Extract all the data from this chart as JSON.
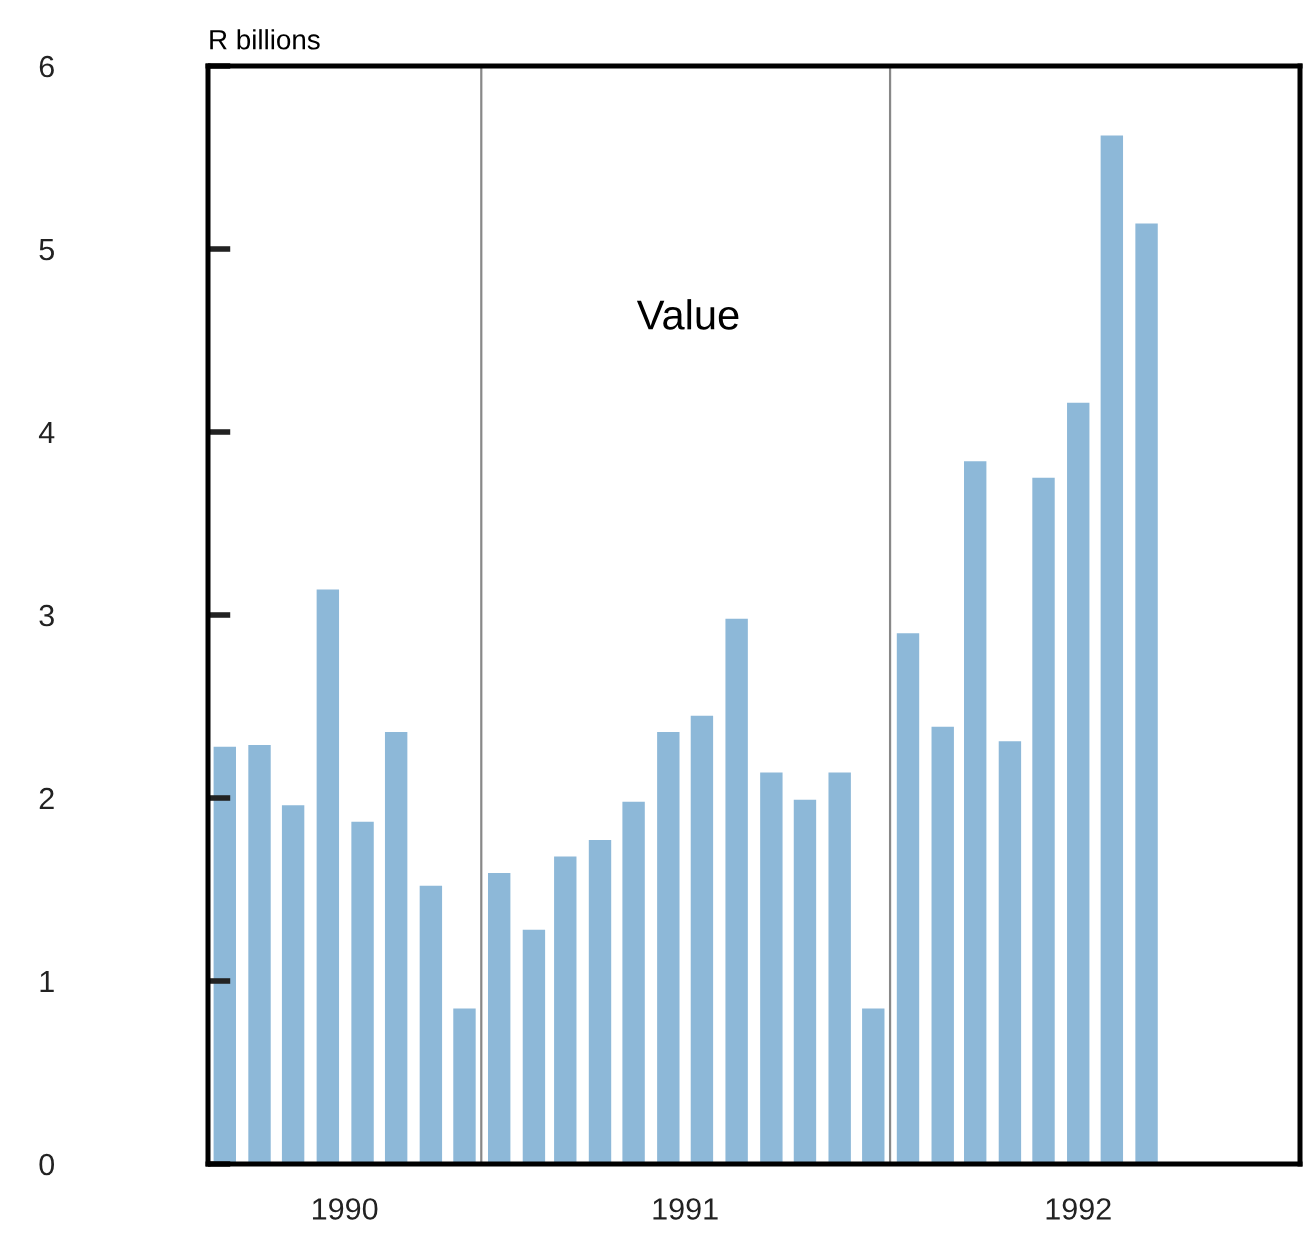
{
  "chart_data": {
    "type": "bar",
    "title": "Value",
    "ylabel": "R billions",
    "x": [
      "1990-05",
      "1990-06",
      "1990-07",
      "1990-08",
      "1990-09",
      "1990-10",
      "1990-11",
      "1990-12",
      "1991-01",
      "1991-02",
      "1991-03",
      "1991-04",
      "1991-05",
      "1991-06",
      "1991-07",
      "1991-08",
      "1991-09",
      "1991-10",
      "1991-11",
      "1991-12",
      "1992-01",
      "1992-02",
      "1992-03",
      "1992-04",
      "1992-05",
      "1992-06",
      "1992-07",
      "1992-08"
    ],
    "values": [
      2.28,
      2.29,
      1.96,
      3.14,
      1.87,
      2.36,
      1.52,
      0.85,
      1.59,
      1.28,
      1.68,
      1.77,
      1.98,
      2.36,
      2.45,
      2.98,
      2.14,
      1.99,
      2.14,
      0.85,
      2.9,
      2.39,
      3.84,
      2.31,
      3.75,
      4.16,
      5.62,
      5.14
    ],
    "color": "#8db8d8",
    "xlim": [
      "1990-04-16",
      "1992-12-16"
    ],
    "xticks": [
      {
        "value": "1990-08-16",
        "label": "1990"
      },
      {
        "value": "1991-06-16",
        "label": "1991"
      },
      {
        "value": "1992-06-01",
        "label": "1992"
      }
    ],
    "ylim": [
      0,
      6
    ],
    "yticks": [
      0,
      1,
      2,
      3,
      4,
      5,
      6
    ],
    "ref_lines": [
      {
        "axis": "x",
        "value": "1990-12-16",
        "color": "#888888"
      },
      {
        "axis": "x",
        "value": "1991-12-16",
        "color": "#888888"
      }
    ],
    "grid": false
  }
}
